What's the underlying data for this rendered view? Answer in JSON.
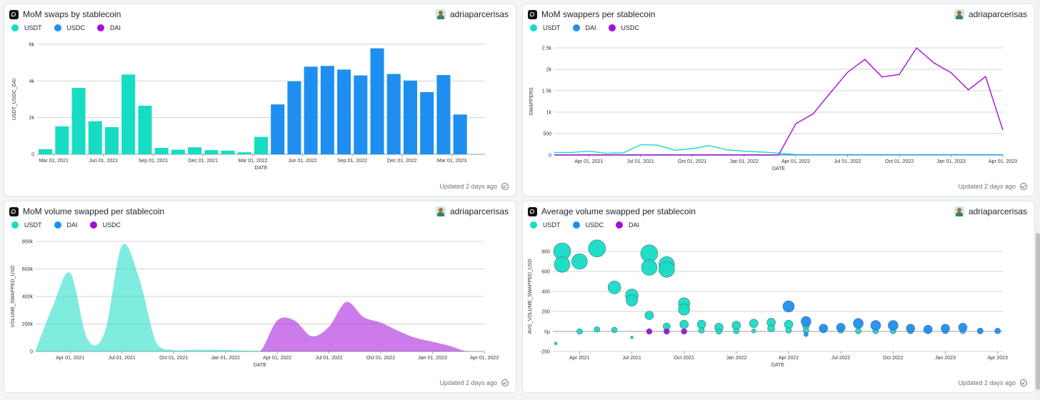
{
  "panels": [
    {
      "title": "MoM swaps by stablecoin",
      "author": "adriaparcerisas",
      "updated": "Updated 2 days ago",
      "legend": [
        {
          "label": "USDT",
          "color": "#16dcc4"
        },
        {
          "label": "USDC",
          "color": "#1e8ff0"
        },
        {
          "label": "DAI",
          "color": "#a30fd8"
        }
      ]
    },
    {
      "title": "MoM swappers per stablecoin",
      "author": "adriaparcerisas",
      "updated": "Updated 2 days ago",
      "legend": [
        {
          "label": "USDT",
          "color": "#16dcc4"
        },
        {
          "label": "DAI",
          "color": "#1e8ff0"
        },
        {
          "label": "USDC",
          "color": "#a30fd8"
        }
      ]
    },
    {
      "title": "MoM volume swapped per stablecoin",
      "author": "adriaparcerisas",
      "updated": "Updated 2 days ago",
      "legend": [
        {
          "label": "USDT",
          "color": "#16dcc4"
        },
        {
          "label": "DAI",
          "color": "#1e8ff0"
        },
        {
          "label": "USDC",
          "color": "#a30fd8"
        }
      ]
    },
    {
      "title": "Average volume swapped per stablecoin",
      "author": "adriaparcerisas",
      "updated": "Updated 2 days ago",
      "legend": [
        {
          "label": "USDT",
          "color": "#16dcc4"
        },
        {
          "label": "USDC",
          "color": "#1e8ff0"
        },
        {
          "label": "DAI",
          "color": "#a30fd8"
        }
      ]
    }
  ],
  "chart_data": [
    {
      "type": "bar",
      "xlabel": "DATE",
      "ylabel": "USDT_USDC_DAI",
      "ylim": [
        0,
        6000
      ],
      "yticks": [
        0,
        2000,
        4000,
        6000
      ],
      "ytick_labels": [
        "0",
        "2k",
        "4k",
        "6k"
      ],
      "xtick_labels": [
        "Mar 01, 2021",
        "Jun 01, 2021",
        "Sep 01, 2021",
        "Dec 01, 2021",
        "Mar 01, 2022",
        "Jun 01, 2022",
        "Sep 01, 2022",
        "Dec 01, 2022",
        "Mar 01, 2023"
      ],
      "categories": [
        "2021-02",
        "2021-03",
        "2021-04",
        "2021-05",
        "2021-06",
        "2021-07",
        "2021-08",
        "2021-09",
        "2021-10",
        "2021-11",
        "2021-12",
        "2022-01",
        "2022-02",
        "2022-03",
        "2022-04",
        "2022-05",
        "2022-06",
        "2022-07",
        "2022-08",
        "2022-09",
        "2022-10",
        "2022-11",
        "2022-12",
        "2023-01",
        "2023-02",
        "2023-03",
        "2023-04"
      ],
      "colors": [
        "#16dcc4",
        "#16dcc4",
        "#16dcc4",
        "#16dcc4",
        "#16dcc4",
        "#16dcc4",
        "#16dcc4",
        "#16dcc4",
        "#16dcc4",
        "#16dcc4",
        "#16dcc4",
        "#16dcc4",
        "#16dcc4",
        "#16dcc4",
        "#1e8ff0",
        "#1e8ff0",
        "#1e8ff0",
        "#1e8ff0",
        "#1e8ff0",
        "#1e8ff0",
        "#1e8ff0",
        "#1e8ff0",
        "#1e8ff0",
        "#1e8ff0",
        "#1e8ff0",
        "#1e8ff0",
        "#1e8ff0"
      ],
      "values": [
        280,
        1520,
        3620,
        1800,
        1480,
        4350,
        2650,
        350,
        250,
        380,
        230,
        200,
        110,
        950,
        2720,
        3980,
        4780,
        4820,
        4620,
        4300,
        5780,
        4380,
        4020,
        3390,
        4320,
        2170,
        0
      ]
    },
    {
      "type": "line",
      "xlabel": "DATE",
      "ylabel": "SWAPPERS",
      "ylim": [
        0,
        2500
      ],
      "yticks": [
        0,
        500,
        1000,
        1500,
        2000,
        2500
      ],
      "ytick_labels": [
        "0",
        "500",
        "1k",
        "1.5k",
        "2k",
        "2.5k"
      ],
      "xtick_labels": [
        "Apr 01, 2021",
        "Jul 01, 2021",
        "Oct 01, 2021",
        "Jan 01, 2022",
        "Apr 01, 2022",
        "Jul 01, 2022",
        "Oct 01, 2022",
        "Jan 01, 2023",
        "Apr 01, 2023"
      ],
      "x": [
        "2021-02",
        "2021-03",
        "2021-04",
        "2021-05",
        "2021-06",
        "2021-07",
        "2021-08",
        "2021-09",
        "2021-10",
        "2021-11",
        "2021-12",
        "2022-01",
        "2022-02",
        "2022-03",
        "2022-04",
        "2022-05",
        "2022-06",
        "2022-07",
        "2022-08",
        "2022-09",
        "2022-10",
        "2022-11",
        "2022-12",
        "2023-01",
        "2023-02",
        "2023-03",
        "2023-04"
      ],
      "series": [
        {
          "name": "USDT",
          "color": "#16dcc4",
          "values": [
            60,
            60,
            90,
            40,
            50,
            240,
            230,
            110,
            150,
            220,
            120,
            90,
            70,
            45,
            10,
            5,
            5,
            5,
            5,
            5,
            5,
            5,
            5,
            5,
            5,
            5,
            5
          ]
        },
        {
          "name": "DAI",
          "color": "#1e8ff0",
          "values": [
            3,
            3,
            3,
            3,
            3,
            3,
            3,
            3,
            3,
            3,
            3,
            3,
            3,
            3,
            3,
            3,
            3,
            3,
            3,
            3,
            3,
            3,
            3,
            3,
            3,
            3,
            3
          ]
        },
        {
          "name": "USDC",
          "color": "#a30fd8",
          "values": [
            0,
            0,
            0,
            0,
            0,
            0,
            0,
            0,
            0,
            0,
            0,
            0,
            0,
            0,
            730,
            960,
            1450,
            1930,
            2230,
            1820,
            1880,
            2500,
            2150,
            1920,
            1520,
            1830,
            580
          ]
        }
      ]
    },
    {
      "type": "area",
      "xlabel": "DATE",
      "ylabel": "VOLUME_SWAPPED_USD",
      "ylim": [
        0,
        800000
      ],
      "yticks": [
        0,
        200000,
        400000,
        600000,
        800000
      ],
      "ytick_labels": [
        "0",
        "200k",
        "400k",
        "600k",
        "800k"
      ],
      "xtick_labels": [
        "Apr 01, 2021",
        "Jul 01, 2021",
        "Oct 01, 2021",
        "Jan 01, 2022",
        "Apr 01, 2022",
        "Jul 01, 2022",
        "Oct 01, 2022",
        "Jan 01, 2023",
        "Apr 01, 2023"
      ],
      "x": [
        "2021-02",
        "2021-03",
        "2021-04",
        "2021-05",
        "2021-06",
        "2021-07",
        "2021-08",
        "2021-09",
        "2021-10",
        "2021-11",
        "2021-12",
        "2022-01",
        "2022-02",
        "2022-03",
        "2022-04",
        "2022-05",
        "2022-06",
        "2022-07",
        "2022-08",
        "2022-09",
        "2022-10",
        "2022-11",
        "2022-12",
        "2023-01",
        "2023-02",
        "2023-03",
        "2023-04"
      ],
      "series": [
        {
          "name": "USDT",
          "color": "#16dcc4",
          "values": [
            10000,
            330000,
            570000,
            90000,
            140000,
            770000,
            530000,
            60000,
            10000,
            12000,
            12000,
            11000,
            6000,
            4000,
            0,
            0,
            0,
            0,
            0,
            0,
            0,
            0,
            0,
            0,
            0,
            0,
            0
          ]
        },
        {
          "name": "DAI",
          "color": "#1e8ff0",
          "values": [
            0,
            0,
            0,
            0,
            0,
            0,
            0,
            0,
            0,
            0,
            0,
            0,
            0,
            0,
            0,
            0,
            0,
            0,
            0,
            0,
            0,
            0,
            0,
            0,
            0,
            0,
            0
          ]
        },
        {
          "name": "USDC",
          "color": "#a30fd8",
          "values": [
            0,
            0,
            0,
            0,
            0,
            0,
            0,
            0,
            0,
            0,
            0,
            0,
            0,
            0,
            225000,
            225000,
            110000,
            180000,
            360000,
            250000,
            210000,
            150000,
            100000,
            70000,
            40000,
            0,
            0
          ]
        }
      ]
    },
    {
      "type": "scatter",
      "xlabel": "DATE",
      "ylabel": "AVG_VOLUME_SWAPPED_USD",
      "ylim": [
        -200,
        900
      ],
      "yticks": [
        -200,
        0,
        200,
        400,
        600,
        800
      ],
      "ytick_labels": [
        "-200",
        "0μ",
        "200",
        "400",
        "600",
        "800"
      ],
      "xtick_labels": [
        "Apr 2021",
        "Jul 2021",
        "Oct 2021",
        "Jan 2022",
        "Apr 2022",
        "Jul 2022",
        "Oct 2022",
        "Jan 2023",
        "Apr 2023"
      ],
      "series": [
        {
          "name": "USDT",
          "color": "#16dcc4",
          "points": [
            {
              "x": "2021-02-20",
              "y": -120,
              "size": 1
            },
            {
              "x": "2021-03-01",
              "y": 800,
              "size": 6
            },
            {
              "x": "2021-03-01",
              "y": 670,
              "size": 5.5
            },
            {
              "x": "2021-04-01",
              "y": 700,
              "size": 5.5
            },
            {
              "x": "2021-04-01",
              "y": 0,
              "size": 2
            },
            {
              "x": "2021-05-01",
              "y": 830,
              "size": 6
            },
            {
              "x": "2021-05-01",
              "y": 20,
              "size": 2
            },
            {
              "x": "2021-06-01",
              "y": 440,
              "size": 4.5
            },
            {
              "x": "2021-06-01",
              "y": 15,
              "size": 2
            },
            {
              "x": "2021-07-01",
              "y": 360,
              "size": 4.5
            },
            {
              "x": "2021-07-01",
              "y": 310,
              "size": 4
            },
            {
              "x": "2021-07-01",
              "y": -60,
              "size": 1
            },
            {
              "x": "2021-08-01",
              "y": 780,
              "size": 6
            },
            {
              "x": "2021-08-01",
              "y": 640,
              "size": 5.5
            },
            {
              "x": "2021-08-01",
              "y": 160,
              "size": 3
            },
            {
              "x": "2021-09-01",
              "y": 670,
              "size": 5.5
            },
            {
              "x": "2021-09-01",
              "y": 620,
              "size": 5.5
            },
            {
              "x": "2021-09-01",
              "y": 50,
              "size": 2.5
            },
            {
              "x": "2021-10-01",
              "y": 280,
              "size": 4
            },
            {
              "x": "2021-10-01",
              "y": 220,
              "size": 4
            },
            {
              "x": "2021-10-01",
              "y": 70,
              "size": 3
            },
            {
              "x": "2021-11-01",
              "y": 70,
              "size": 3
            },
            {
              "x": "2021-11-01",
              "y": 10,
              "size": 2
            },
            {
              "x": "2021-12-01",
              "y": 40,
              "size": 3
            },
            {
              "x": "2021-12-01",
              "y": 0,
              "size": 2
            },
            {
              "x": "2022-01-01",
              "y": 60,
              "size": 3
            },
            {
              "x": "2022-01-01",
              "y": 5,
              "size": 2
            },
            {
              "x": "2022-02-01",
              "y": 80,
              "size": 3
            },
            {
              "x": "2022-02-01",
              "y": 5,
              "size": 1.5
            },
            {
              "x": "2022-03-01",
              "y": 90,
              "size": 3
            },
            {
              "x": "2022-03-01",
              "y": 30,
              "size": 2.5
            },
            {
              "x": "2022-04-01",
              "y": 70,
              "size": 3
            },
            {
              "x": "2022-04-01",
              "y": 10,
              "size": 2
            },
            {
              "x": "2022-05-01",
              "y": 60,
              "size": 2.5
            },
            {
              "x": "2022-05-01",
              "y": 10,
              "size": 2
            },
            {
              "x": "2022-06-01",
              "y": 15,
              "size": 2
            },
            {
              "x": "2022-07-01",
              "y": 10,
              "size": 2
            },
            {
              "x": "2022-08-01",
              "y": 5,
              "size": 2
            },
            {
              "x": "2022-09-01",
              "y": 5,
              "size": 2
            },
            {
              "x": "2022-10-01",
              "y": 5,
              "size": 2
            },
            {
              "x": "2022-11-01",
              "y": 5,
              "size": 2
            },
            {
              "x": "2022-12-01",
              "y": 5,
              "size": 2
            },
            {
              "x": "2023-01-01",
              "y": 5,
              "size": 2
            },
            {
              "x": "2023-02-01",
              "y": 5,
              "size": 2
            },
            {
              "x": "2023-03-01",
              "y": 5,
              "size": 2
            }
          ]
        },
        {
          "name": "USDC",
          "color": "#1e8ff0",
          "points": [
            {
              "x": "2022-04-01",
              "y": 250,
              "size": 4
            },
            {
              "x": "2022-05-01",
              "y": 100,
              "size": 3.5
            },
            {
              "x": "2022-05-01",
              "y": -30,
              "size": 1.5
            },
            {
              "x": "2022-06-01",
              "y": 30,
              "size": 3
            },
            {
              "x": "2022-07-01",
              "y": 40,
              "size": 3
            },
            {
              "x": "2022-08-01",
              "y": 80,
              "size": 3.5
            },
            {
              "x": "2022-09-01",
              "y": 60,
              "size": 3.5
            },
            {
              "x": "2022-10-01",
              "y": 60,
              "size": 3.5
            },
            {
              "x": "2022-11-01",
              "y": 30,
              "size": 3
            },
            {
              "x": "2022-12-01",
              "y": 20,
              "size": 3
            },
            {
              "x": "2023-01-01",
              "y": 30,
              "size": 3
            },
            {
              "x": "2023-02-01",
              "y": 40,
              "size": 3
            },
            {
              "x": "2023-03-01",
              "y": 5,
              "size": 2
            },
            {
              "x": "2023-04-01",
              "y": 5,
              "size": 2
            }
          ]
        },
        {
          "name": "DAI",
          "color": "#a30fd8",
          "points": [
            {
              "x": "2021-08-01",
              "y": 0,
              "size": 2
            },
            {
              "x": "2021-09-01",
              "y": 0,
              "size": 2
            },
            {
              "x": "2021-10-01",
              "y": 0,
              "size": 2
            }
          ]
        }
      ]
    }
  ]
}
